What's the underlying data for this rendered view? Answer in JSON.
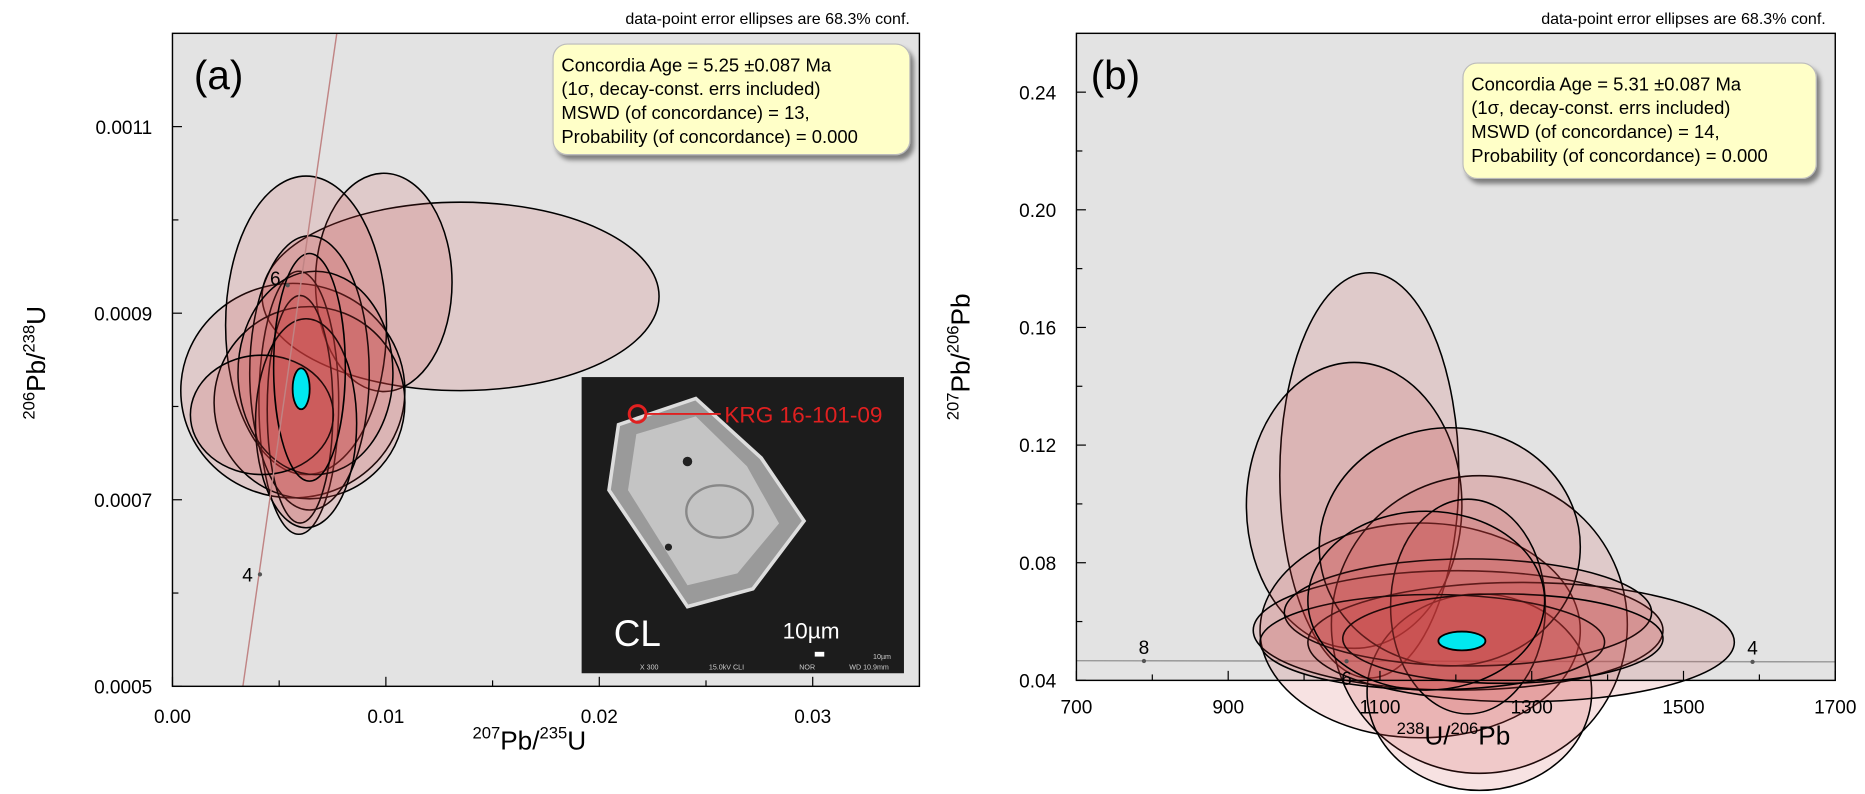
{
  "chart_data": [
    {
      "type": "concordia",
      "panel_label": "(a)",
      "note": "data-point error ellipses are 68.3% conf.",
      "info_lines": [
        "Concordia Age = 5.25 ±0.087 Ma",
        "(1σ, decay-const. errs included)",
        "MSWD (of concordance) = 13,",
        "Probability  (of concordance) = 0.000"
      ],
      "xlabel_parts": [
        "207",
        "Pb/",
        "235",
        "U"
      ],
      "ylabel_parts": [
        "206",
        "Pb/",
        "238",
        "U"
      ],
      "xlim": [
        0,
        0.035
      ],
      "ylim": [
        0.0005,
        0.0012
      ],
      "xticks": [
        {
          "value": 0,
          "label": "0.00"
        },
        {
          "value": 0.01,
          "label": "0.01"
        },
        {
          "value": 0.02,
          "label": "0.02"
        },
        {
          "value": 0.03,
          "label": "0.03"
        }
      ],
      "yticks": [
        0.0005,
        0.0007,
        0.0009,
        0.0011
      ],
      "xminor": [
        0.005,
        0.015,
        0.025
      ],
      "yminor": [
        0.0006,
        0.0008,
        0.001
      ],
      "concordia": {
        "color": "#c08484",
        "x": [
          0.0033,
          0.0077
        ],
        "y": [
          0.0005,
          0.0012
        ]
      },
      "age_marks": {
        "ages": [
          4,
          6
        ],
        "x": [
          0.0041,
          0.0054
        ],
        "y": [
          0.00062,
          0.00093
        ]
      },
      "ellipses": {
        "color": "#c83c3c",
        "x": [
          0.0135,
          0.0099,
          0.00564,
          0.00626,
          0.00592,
          0.00642,
          0.00642,
          0.00598,
          0.0067,
          0.00626,
          0.00419,
          0.00642
        ],
        "x_err": [
          0.0093,
          0.0032,
          0.00525,
          0.00377,
          0.00187,
          0.00447,
          0.0028,
          0.00154,
          0.00363,
          0.00237,
          0.00335,
          0.00168
        ],
        "y": [
          0.000918,
          0.000933,
          0.000817,
          0.000887,
          0.000804,
          0.000804,
          0.000836,
          0.000797,
          0.000836,
          0.000782,
          0.000791,
          0.000842
        ],
        "y_err": [
          0.000101,
          0.000117,
          0.000115,
          0.00016,
          0.000141,
          0.000103,
          0.000147,
          0.000122,
          0.000109,
          0.000112,
          6.4e-05,
          0.000122
        ]
      },
      "age_ellipse": {
        "color": "#00e8f0",
        "x": 0.00603,
        "x_err": 0.0004,
        "y": 0.000819,
        "y_err": 2.2e-05
      },
      "inset": {
        "sample": "KRG 16-101-09",
        "mode": "CL",
        "scale": "10µm",
        "footer": [
          "X 300",
          "15.0kV CLI",
          "NOR",
          "WD 10.9mm"
        ],
        "scale_small": "10µm"
      }
    },
    {
      "type": "concordia",
      "panel_label": "(b)",
      "note": "data-point error ellipses are 68.3% conf.",
      "info_lines": [
        "Concordia Age = 5.31 ±0.087 Ma",
        "(1σ, decay-const. errs included)",
        "MSWD (of concordance) = 14,",
        "Probability  (of concordance) = 0.000"
      ],
      "xlabel_parts": [
        "238",
        "U/",
        "206",
        "Pb"
      ],
      "ylabel_parts": [
        "207",
        "Pb/",
        "206",
        "Pb"
      ],
      "xlim": [
        700,
        1700
      ],
      "ylim": [
        0.04,
        0.26
      ],
      "xticks": [
        700,
        900,
        1100,
        1300,
        1500,
        1700
      ],
      "yticks": [
        0.04,
        0.08,
        0.12,
        0.16,
        {
          "value": 0.2,
          "label": "0.20"
        },
        0.24
      ],
      "xminor": [
        800,
        1000,
        1200,
        1400,
        1600
      ],
      "yminor": [
        0.06,
        0.1,
        0.14,
        0.18,
        0.22
      ],
      "concordia": {
        "color": "#999999",
        "x": [
          700,
          1700
        ],
        "y": [
          0.0467,
          0.0463
        ]
      },
      "age_marks": {
        "ages": [
          8,
          6,
          4
        ],
        "x": [
          789,
          1056,
          1591
        ],
        "y": [
          0.0466,
          0.0465,
          0.0463
        ]
      },
      "ellipses": {
        "color": "#c83c3c",
        "x": [
          1086,
          1066,
          1153,
          1231,
          1231,
          1203,
          1286,
          1192,
          1216,
          1216,
          1169,
          1262,
          1161
        ],
        "x_err": [
          118,
          142,
          211,
          195,
          148,
          270,
          281,
          172,
          102,
          242,
          227,
          211,
          156
        ],
        "y": [
          0.1097,
          0.0995,
          0.057,
          0.059,
          0.036,
          0.057,
          0.053,
          0.0854,
          0.0651,
          0.0631,
          0.053,
          0.0542,
          0.0671
        ],
        "y_err": [
          0.0689,
          0.0486,
          0.0365,
          0.0506,
          0.0334,
          0.0203,
          0.0203,
          0.0405,
          0.0365,
          0.0182,
          0.0162,
          0.0152,
          0.0304
        ]
      },
      "age_ellipse": {
        "color": "#00e8f0",
        "x": 1208,
        "x_err": 31,
        "y": 0.0534,
        "y_err": 0.0032
      }
    }
  ]
}
